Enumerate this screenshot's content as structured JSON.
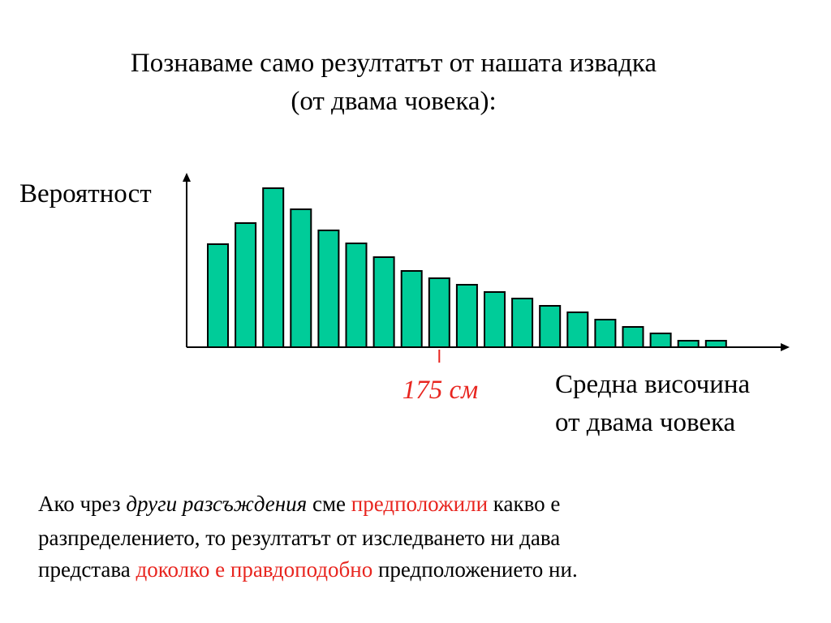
{
  "title": {
    "line1": "Познаваме само резултатът от нашата извадка",
    "line2": "(от двама човека):"
  },
  "chart_data": {
    "type": "bar",
    "title": "",
    "ylabel": "Вероятност",
    "xlabel_lines": [
      "Средна височина",
      "от двама човека"
    ],
    "marker_label": "175 см",
    "marker_category_index": 8,
    "values": [
      127,
      153,
      196,
      170,
      144,
      128,
      111,
      94,
      85,
      77,
      68,
      60,
      51,
      43,
      34,
      25,
      17,
      8,
      8
    ],
    "ylim": [
      0,
      200
    ],
    "grid": false,
    "bar_color": "#00cc99",
    "axis_color": "#000000",
    "marker_color": "#e8251f"
  },
  "paragraph": {
    "line1": {
      "p1": "Ако чрез ",
      "p2": "други разсъждения",
      "p3": " сме ",
      "p4": "предположили",
      "p5": " какво е"
    },
    "line2": "разпределението, то резултатът от изследването ни дава",
    "line3": {
      "p1": "представа ",
      "p2": "доколко е правдоподобно",
      "p3": " предположението ни."
    }
  },
  "colors": {
    "highlight": "#e8251f",
    "text": "#000000"
  }
}
